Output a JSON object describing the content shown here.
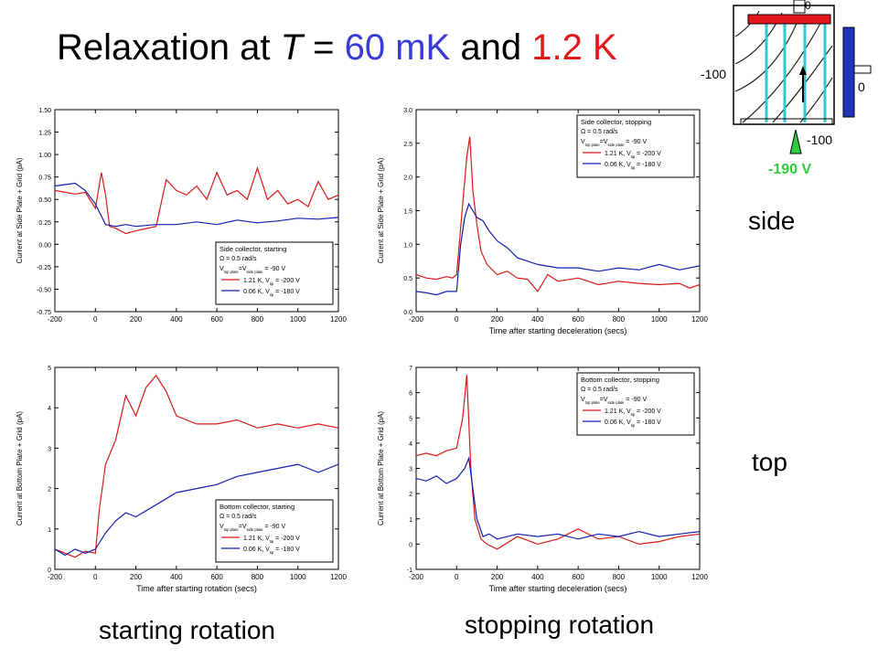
{
  "title": {
    "prefix": "Relaxation at ",
    "t_symbol": "T",
    "eq": " = ",
    "value_mk": "60 mK",
    "and": " and ",
    "value_k": "1.2 K"
  },
  "row_labels": {
    "side": "side",
    "top": "top"
  },
  "col_labels": {
    "start": "starting rotation",
    "stop": "stopping rotation"
  },
  "diagram": {
    "electrode_left": "-100",
    "electrode_bottom": "-100",
    "electrode_right": "0",
    "electrode_top": "0",
    "tip_voltage": "-190 V",
    "colors": {
      "top_plate": "#e8141c",
      "right_plate": "#2233bb",
      "field_lines": "#2fc8cc",
      "tip": "#2ecc40"
    }
  },
  "colors": {
    "red": "#d81818",
    "blue": "#1020b0"
  },
  "chart_data": [
    {
      "id": "side-start",
      "type": "line",
      "xlabel": "",
      "ylabel": "Current at Side Plate + Grid (pA)",
      "xlim": [
        -200,
        1200
      ],
      "ylim": [
        -0.75,
        1.5
      ],
      "xticks": [
        "-200",
        "0",
        "200",
        "400",
        "600",
        "800",
        "1000",
        "1200"
      ],
      "yticks": [
        "-0.75",
        "-0.50",
        "-0.25",
        "0.00",
        "0.25",
        "0.50",
        "0.75",
        "1.00",
        "1.25",
        "1.50"
      ],
      "legend": {
        "title": "Side collector, starting",
        "omega": "Ω = 0.5 rad/s",
        "vplate": "V_top plate=V_side plate = -90 V"
      },
      "legend_position": "bottom-right",
      "series": [
        {
          "name": "1.21 K, V_tip = -200 V",
          "color": "red",
          "x": [
            -200,
            -100,
            -50,
            0,
            30,
            50,
            70,
            100,
            150,
            200,
            300,
            350,
            400,
            450,
            500,
            550,
            600,
            650,
            700,
            750,
            800,
            850,
            900,
            950,
            1000,
            1050,
            1100,
            1150,
            1200
          ],
          "y": [
            0.6,
            0.56,
            0.58,
            0.4,
            0.8,
            0.55,
            0.2,
            0.18,
            0.12,
            0.15,
            0.2,
            0.72,
            0.6,
            0.55,
            0.65,
            0.5,
            0.8,
            0.55,
            0.6,
            0.5,
            0.85,
            0.5,
            0.6,
            0.45,
            0.5,
            0.42,
            0.7,
            0.5,
            0.55
          ]
        },
        {
          "name": "0.06 K, V_tip = -180 V",
          "color": "blue",
          "x": [
            -200,
            -100,
            -50,
            0,
            50,
            100,
            150,
            200,
            300,
            400,
            500,
            600,
            700,
            800,
            900,
            1000,
            1100,
            1200
          ],
          "y": [
            0.65,
            0.68,
            0.6,
            0.45,
            0.22,
            0.2,
            0.22,
            0.2,
            0.22,
            0.22,
            0.25,
            0.22,
            0.27,
            0.24,
            0.26,
            0.29,
            0.28,
            0.3
          ]
        }
      ]
    },
    {
      "id": "side-stop",
      "type": "line",
      "xlabel": "Time after starting deceleration (secs)",
      "ylabel": "Current at Side Plate + Grid (pA)",
      "xlim": [
        -200,
        1200
      ],
      "ylim": [
        0.0,
        3.0
      ],
      "xticks": [
        "-200",
        "0",
        "200",
        "400",
        "600",
        "800",
        "1000",
        "1200"
      ],
      "yticks": [
        "0.0",
        "0.5",
        "1.0",
        "1.5",
        "2.0",
        "2.5",
        "3.0"
      ],
      "legend": {
        "title": "Side collector, stopping",
        "omega": "Ω = 0.5 rad/s",
        "vplate": "V_top plate=V_side plate = -90 V"
      },
      "legend_position": "top-right",
      "series": [
        {
          "name": "1.21 K, V_tip = -200 V",
          "color": "red",
          "x": [
            -200,
            -150,
            -100,
            -50,
            -20,
            0,
            30,
            50,
            65,
            80,
            100,
            120,
            150,
            200,
            250,
            300,
            350,
            400,
            450,
            500,
            600,
            700,
            800,
            900,
            1000,
            1100,
            1150,
            1200
          ],
          "y": [
            0.55,
            0.5,
            0.48,
            0.52,
            0.5,
            0.55,
            1.6,
            2.3,
            2.6,
            1.8,
            1.3,
            0.9,
            0.7,
            0.55,
            0.6,
            0.5,
            0.48,
            0.3,
            0.55,
            0.45,
            0.5,
            0.4,
            0.45,
            0.42,
            0.4,
            0.42,
            0.35,
            0.4
          ]
        },
        {
          "name": "0.06 K, V_tip = -180 V",
          "color": "blue",
          "x": [
            -200,
            -150,
            -100,
            -50,
            0,
            20,
            40,
            60,
            80,
            100,
            130,
            160,
            200,
            250,
            300,
            400,
            500,
            600,
            700,
            800,
            900,
            1000,
            1100,
            1200
          ],
          "y": [
            0.3,
            0.28,
            0.25,
            0.3,
            0.3,
            1.0,
            1.4,
            1.6,
            1.5,
            1.4,
            1.35,
            1.2,
            1.05,
            0.95,
            0.8,
            0.7,
            0.65,
            0.65,
            0.6,
            0.65,
            0.62,
            0.7,
            0.62,
            0.68
          ]
        }
      ]
    },
    {
      "id": "bottom-start",
      "type": "line",
      "xlabel": "Time after starting rotation (secs)",
      "ylabel": "Current at Bottom Plate + Grid (pA)",
      "xlim": [
        -200,
        1200
      ],
      "ylim": [
        0,
        5
      ],
      "xticks": [
        "-200",
        "0",
        "200",
        "400",
        "600",
        "800",
        "1000",
        "1200"
      ],
      "yticks": [
        "0",
        "1",
        "2",
        "3",
        "4",
        "5"
      ],
      "legend": {
        "title": "Bottom collector, starting",
        "omega": "Ω = 0.5 rad/s",
        "vplate": "V_top plate=V_side plate = -90 V"
      },
      "legend_position": "bottom-right",
      "series": [
        {
          "name": "1.21 K, V_tip = -200 V",
          "color": "red",
          "x": [
            -200,
            -150,
            -100,
            -50,
            0,
            20,
            50,
            100,
            150,
            200,
            250,
            300,
            350,
            400,
            450,
            500,
            600,
            700,
            800,
            900,
            1000,
            1100,
            1200
          ],
          "y": [
            0.5,
            0.4,
            0.3,
            0.45,
            0.4,
            1.5,
            2.6,
            3.2,
            4.3,
            3.8,
            4.5,
            4.8,
            4.4,
            3.8,
            3.7,
            3.6,
            3.6,
            3.7,
            3.5,
            3.6,
            3.5,
            3.6,
            3.5
          ]
        },
        {
          "name": "0.06 K, V_tip = -180 V",
          "color": "blue",
          "x": [
            -200,
            -150,
            -100,
            -50,
            0,
            50,
            100,
            150,
            200,
            300,
            400,
            500,
            600,
            700,
            800,
            900,
            1000,
            1100,
            1200
          ],
          "y": [
            0.5,
            0.35,
            0.5,
            0.4,
            0.5,
            0.9,
            1.2,
            1.4,
            1.3,
            1.6,
            1.9,
            2.0,
            2.1,
            2.3,
            2.4,
            2.5,
            2.6,
            2.4,
            2.6
          ]
        }
      ]
    },
    {
      "id": "bottom-stop",
      "type": "line",
      "xlabel": "Time after starting deceleration (secs)",
      "ylabel": "Current at Bottom Plate + Grid (pA)",
      "xlim": [
        -200,
        1200
      ],
      "ylim": [
        -1,
        7
      ],
      "xticks": [
        "-200",
        "0",
        "200",
        "400",
        "600",
        "800",
        "1000",
        "1200"
      ],
      "yticks": [
        "-1",
        "0",
        "1",
        "2",
        "3",
        "4",
        "5",
        "6",
        "7"
      ],
      "legend": {
        "title": "Bottom collector, stopping",
        "omega": "Ω = 0.5 rad/s",
        "vplate": "V_top plate=V_side plate = -90 V"
      },
      "legend_position": "top-right",
      "series": [
        {
          "name": "1.21 K, V_tip = -200 V",
          "color": "red",
          "x": [
            -200,
            -150,
            -100,
            -50,
            0,
            30,
            50,
            70,
            90,
            120,
            150,
            200,
            300,
            400,
            500,
            600,
            700,
            800,
            900,
            1000,
            1100,
            1200
          ],
          "y": [
            3.5,
            3.6,
            3.5,
            3.7,
            3.8,
            5.0,
            6.7,
            3.0,
            1.0,
            0.2,
            0.0,
            -0.2,
            0.3,
            0.0,
            0.2,
            0.6,
            0.2,
            0.3,
            0.0,
            0.1,
            0.3,
            0.4
          ]
        },
        {
          "name": "0.06 K, V_tip = -180 V",
          "color": "blue",
          "x": [
            -200,
            -150,
            -100,
            -50,
            0,
            40,
            60,
            80,
            100,
            130,
            160,
            200,
            300,
            400,
            500,
            600,
            700,
            800,
            900,
            1000,
            1100,
            1200
          ],
          "y": [
            2.6,
            2.5,
            2.7,
            2.4,
            2.6,
            3.0,
            3.4,
            2.2,
            1.0,
            0.3,
            0.4,
            0.2,
            0.4,
            0.3,
            0.4,
            0.2,
            0.4,
            0.3,
            0.5,
            0.3,
            0.4,
            0.5
          ]
        }
      ]
    }
  ]
}
